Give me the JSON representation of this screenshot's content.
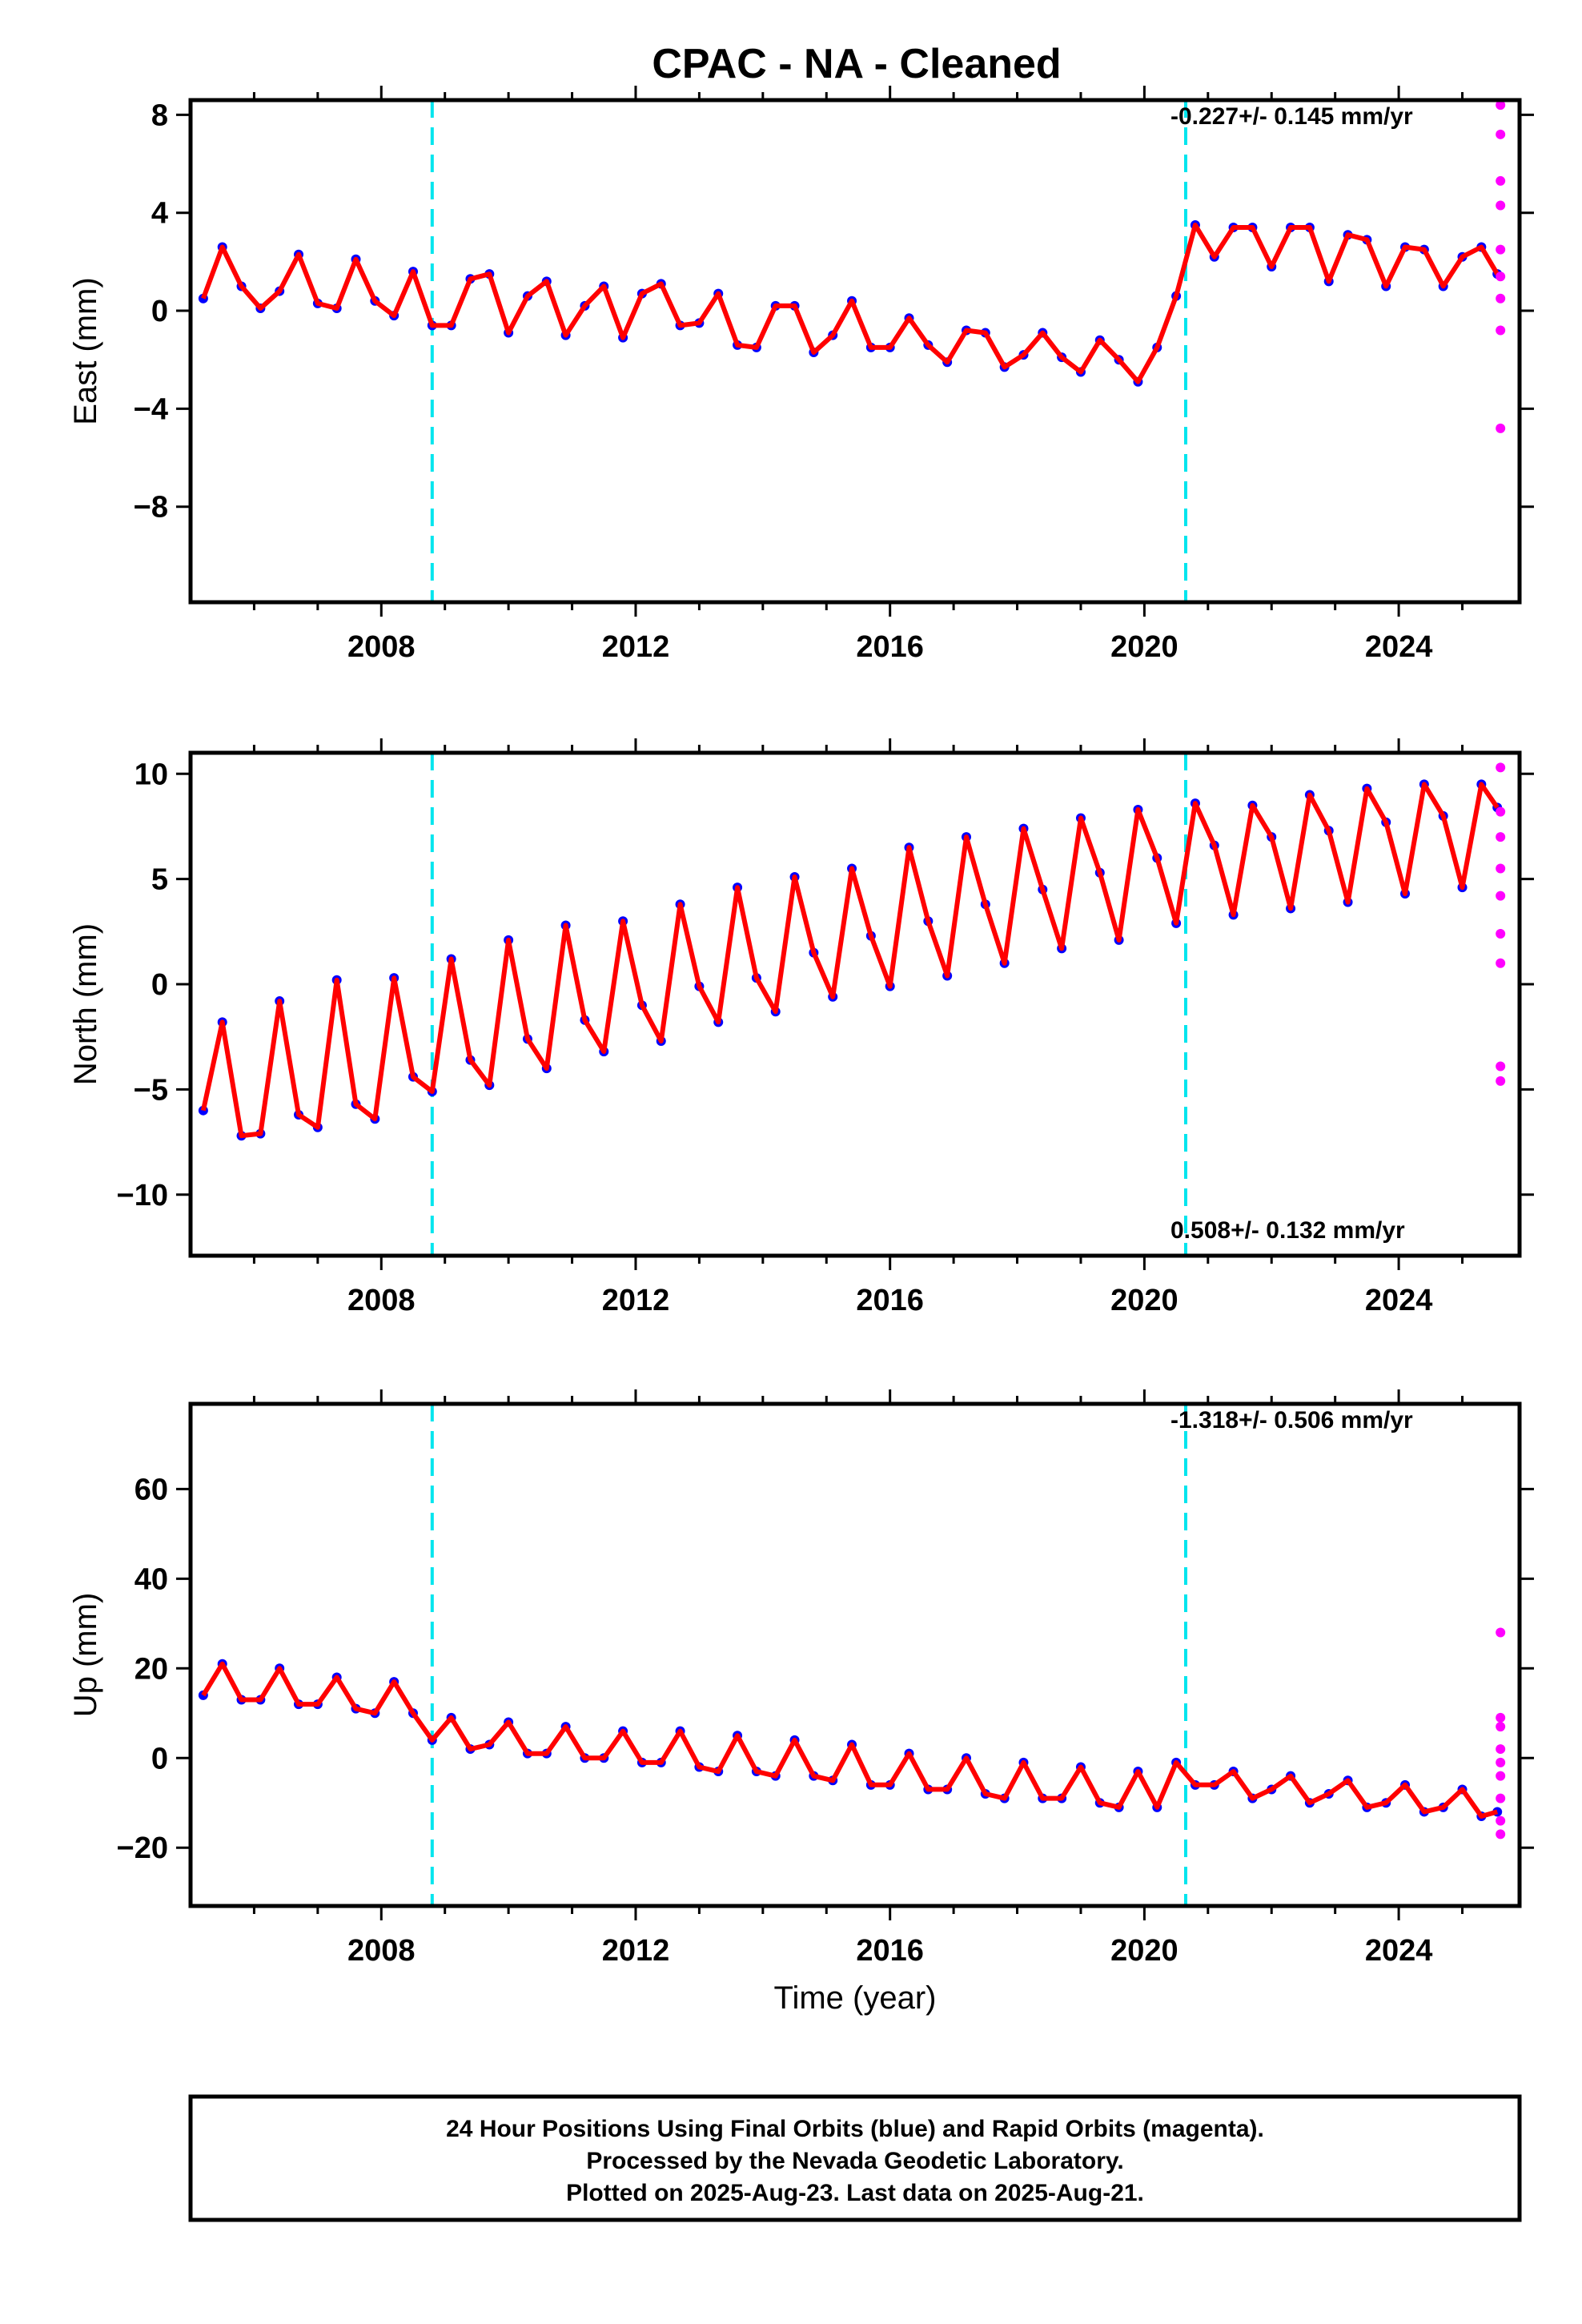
{
  "title": "CPAC  - NA - Cleaned",
  "colors": {
    "final_orbits": "#0000ff",
    "rapid_orbits": "#ff00ff",
    "model": "#ff0000",
    "event": "#00e5ee"
  },
  "chart_data": [
    {
      "id": "east",
      "type": "scatter",
      "ylabel": "East (mm)",
      "xlabel": "",
      "xlim": [
        2005.0,
        2025.9
      ],
      "ylim": [
        -11.9,
        8.6
      ],
      "yticks": [
        -8,
        -4,
        0,
        4,
        8
      ],
      "xticks": [
        2008,
        2012,
        2016,
        2020,
        2024
      ],
      "grid": false,
      "rate_text": "-0.227+/- 0.145 mm/yr",
      "rate_position": "top-right",
      "events": [
        2008.8,
        2020.65
      ],
      "series": [
        {
          "kind": "observations",
          "x": [
            2005.2,
            2005.5,
            2005.8,
            2006.1,
            2006.4,
            2006.7,
            2007.0,
            2007.3,
            2007.6,
            2007.9,
            2008.2,
            2008.5,
            2008.8,
            2009.1,
            2009.4,
            2009.7,
            2010.0,
            2010.3,
            2010.6,
            2010.9,
            2011.2,
            2011.5,
            2011.8,
            2012.1,
            2012.4,
            2012.7,
            2013.0,
            2013.3,
            2013.6,
            2013.9,
            2014.2,
            2014.5,
            2014.8,
            2015.1,
            2015.4,
            2015.7,
            2016.0,
            2016.3,
            2016.6,
            2016.9,
            2017.2,
            2017.5,
            2017.8,
            2018.1,
            2018.4,
            2018.7,
            2019.0,
            2019.3,
            2019.6,
            2019.9,
            2020.2,
            2020.5,
            2020.8,
            2021.1,
            2021.4,
            2021.7,
            2022.0,
            2022.3,
            2022.6,
            2022.9,
            2023.2,
            2023.5,
            2023.8,
            2024.1,
            2024.4,
            2024.7,
            2025.0,
            2025.3,
            2025.55
          ],
          "y": [
            0.5,
            2.6,
            1.0,
            0.1,
            0.8,
            2.3,
            0.3,
            0.1,
            2.1,
            0.4,
            -0.2,
            1.6,
            -0.6,
            -0.6,
            1.3,
            1.5,
            -0.9,
            0.6,
            1.2,
            -1.0,
            0.2,
            1.0,
            -1.1,
            0.7,
            1.1,
            -0.6,
            -0.5,
            0.7,
            -1.4,
            -1.5,
            0.2,
            0.2,
            -1.7,
            -1.0,
            0.4,
            -1.5,
            -1.5,
            -0.3,
            -1.4,
            -2.1,
            -0.8,
            -0.9,
            -2.3,
            -1.8,
            -0.9,
            -1.9,
            -2.5,
            -1.2,
            -2.0,
            -2.9,
            -1.5,
            0.6,
            3.5,
            2.2,
            3.4,
            3.4,
            1.8,
            3.4,
            3.4,
            1.2,
            3.1,
            2.9,
            1.0,
            2.6,
            2.5,
            1.0,
            2.2,
            2.6,
            1.5
          ]
        },
        {
          "kind": "rapid",
          "x": [
            2025.6,
            2025.6,
            2025.6,
            2025.6,
            2025.6,
            2025.6,
            2025.6,
            2025.6,
            2025.6
          ],
          "y": [
            8.4,
            7.2,
            5.3,
            4.3,
            2.5,
            1.4,
            0.5,
            -0.8,
            -4.8
          ]
        }
      ]
    },
    {
      "id": "north",
      "type": "scatter",
      "ylabel": "North (mm)",
      "xlabel": "",
      "xlim": [
        2005.0,
        2025.9
      ],
      "ylim": [
        -12.9,
        11.0
      ],
      "yticks": [
        -10,
        -5,
        0,
        5,
        10
      ],
      "xticks": [
        2008,
        2012,
        2016,
        2020,
        2024
      ],
      "grid": false,
      "rate_text": "0.508+/- 0.132 mm/yr",
      "rate_position": "bottom-right",
      "events": [
        2008.8,
        2020.65
      ],
      "series": [
        {
          "kind": "observations",
          "x": [
            2005.2,
            2005.5,
            2005.8,
            2006.1,
            2006.4,
            2006.7,
            2007.0,
            2007.3,
            2007.6,
            2007.9,
            2008.2,
            2008.5,
            2008.8,
            2009.1,
            2009.4,
            2009.7,
            2010.0,
            2010.3,
            2010.6,
            2010.9,
            2011.2,
            2011.5,
            2011.8,
            2012.1,
            2012.4,
            2012.7,
            2013.0,
            2013.3,
            2013.6,
            2013.9,
            2014.2,
            2014.5,
            2014.8,
            2015.1,
            2015.4,
            2015.7,
            2016.0,
            2016.3,
            2016.6,
            2016.9,
            2017.2,
            2017.5,
            2017.8,
            2018.1,
            2018.4,
            2018.7,
            2019.0,
            2019.3,
            2019.6,
            2019.9,
            2020.2,
            2020.5,
            2020.8,
            2021.1,
            2021.4,
            2021.7,
            2022.0,
            2022.3,
            2022.6,
            2022.9,
            2023.2,
            2023.5,
            2023.8,
            2024.1,
            2024.4,
            2024.7,
            2025.0,
            2025.3,
            2025.55
          ],
          "y": [
            -6.0,
            -1.8,
            -7.2,
            -7.1,
            -0.8,
            -6.2,
            -6.8,
            0.2,
            -5.7,
            -6.4,
            0.3,
            -4.4,
            -5.1,
            1.2,
            -3.6,
            -4.8,
            2.1,
            -2.6,
            -4.0,
            2.8,
            -1.7,
            -3.2,
            3.0,
            -1.0,
            -2.7,
            3.8,
            -0.1,
            -1.8,
            4.6,
            0.3,
            -1.3,
            5.1,
            1.5,
            -0.6,
            5.5,
            2.3,
            -0.1,
            6.5,
            3.0,
            0.4,
            7.0,
            3.8,
            1.0,
            7.4,
            4.5,
            1.7,
            7.9,
            5.3,
            2.1,
            8.3,
            6.0,
            2.9,
            8.6,
            6.6,
            3.3,
            8.5,
            7.0,
            3.6,
            9.0,
            7.3,
            3.9,
            9.3,
            7.7,
            4.3,
            9.5,
            8.0,
            4.6,
            9.5,
            8.4
          ]
        },
        {
          "kind": "rapid",
          "x": [
            2025.6,
            2025.6,
            2025.6,
            2025.6,
            2025.6,
            2025.6,
            2025.6,
            2025.6,
            2025.6
          ],
          "y": [
            10.3,
            8.2,
            7.0,
            5.5,
            4.2,
            2.4,
            1.0,
            -3.9,
            -4.6
          ]
        }
      ]
    },
    {
      "id": "up",
      "type": "scatter",
      "ylabel": "Up (mm)",
      "xlabel": "Time (year)",
      "xlim": [
        2005.0,
        2025.9
      ],
      "ylim": [
        -33,
        79
      ],
      "yticks": [
        -20,
        0,
        20,
        40,
        60
      ],
      "xticks": [
        2008,
        2012,
        2016,
        2020,
        2024
      ],
      "grid": false,
      "rate_text": "-1.318+/- 0.506 mm/yr",
      "rate_position": "top-right",
      "events": [
        2008.8,
        2020.65
      ],
      "series": [
        {
          "kind": "observations",
          "x": [
            2005.2,
            2005.5,
            2005.8,
            2006.1,
            2006.4,
            2006.7,
            2007.0,
            2007.3,
            2007.6,
            2007.9,
            2008.2,
            2008.5,
            2008.8,
            2009.1,
            2009.4,
            2009.7,
            2010.0,
            2010.3,
            2010.6,
            2010.9,
            2011.2,
            2011.5,
            2011.8,
            2012.1,
            2012.4,
            2012.7,
            2013.0,
            2013.3,
            2013.6,
            2013.9,
            2014.2,
            2014.5,
            2014.8,
            2015.1,
            2015.4,
            2015.7,
            2016.0,
            2016.3,
            2016.6,
            2016.9,
            2017.2,
            2017.5,
            2017.8,
            2018.1,
            2018.4,
            2018.7,
            2019.0,
            2019.3,
            2019.6,
            2019.9,
            2020.2,
            2020.5,
            2020.8,
            2021.1,
            2021.4,
            2021.7,
            2022.0,
            2022.3,
            2022.6,
            2022.9,
            2023.2,
            2023.5,
            2023.8,
            2024.1,
            2024.4,
            2024.7,
            2025.0,
            2025.3,
            2025.55
          ],
          "y": [
            14,
            21,
            13,
            13,
            20,
            12,
            12,
            18,
            11,
            10,
            17,
            10,
            4,
            9,
            2,
            3,
            8,
            1,
            1,
            7,
            0,
            0,
            6,
            -1,
            -1,
            6,
            -2,
            -3,
            5,
            -3,
            -4,
            4,
            -4,
            -5,
            3,
            -6,
            -6,
            1,
            -7,
            -7,
            0,
            -8,
            -9,
            -1,
            -9,
            -9,
            -2,
            -10,
            -11,
            -3,
            -11,
            -1,
            -6,
            -6,
            -3,
            -9,
            -7,
            -4,
            -10,
            -8,
            -5,
            -11,
            -10,
            -6,
            -12,
            -11,
            -7,
            -13,
            -12
          ]
        },
        {
          "kind": "rapid",
          "x": [
            2025.6,
            2025.6,
            2025.6,
            2025.6,
            2025.6,
            2025.6,
            2025.6,
            2025.6,
            2025.6
          ],
          "y": [
            28,
            9,
            7,
            2,
            -1,
            -4,
            -9,
            -14,
            -17
          ]
        }
      ]
    }
  ],
  "caption": {
    "line1": "24 Hour Positions Using Final Orbits (blue) and Rapid Orbits (magenta).",
    "line2": "Processed by the Nevada Geodetic Laboratory.",
    "line3": "Plotted on 2025-Aug-23. Last data on 2025-Aug-21."
  }
}
